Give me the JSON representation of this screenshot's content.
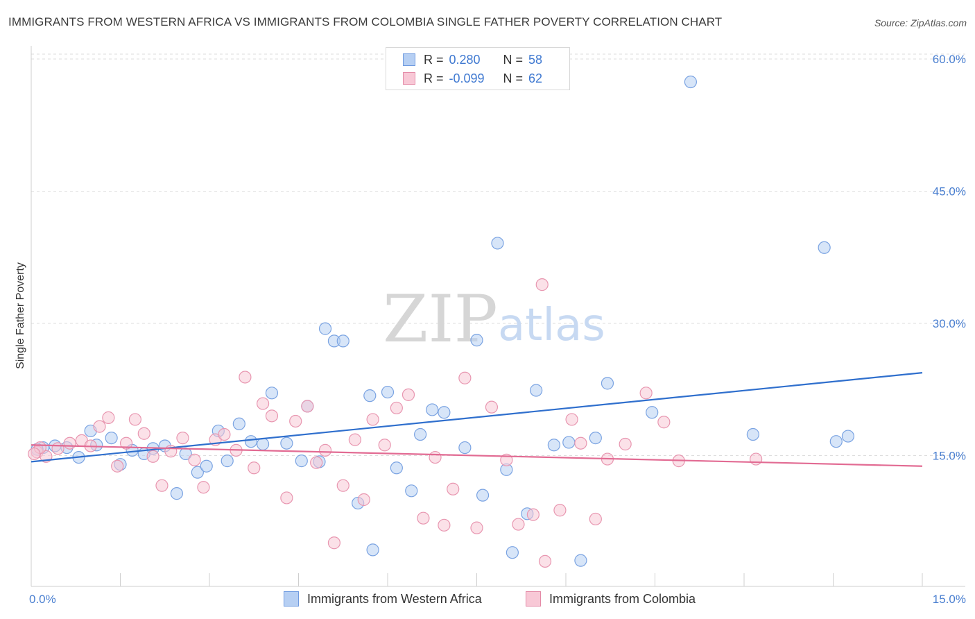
{
  "title": "IMMIGRANTS FROM WESTERN AFRICA VS IMMIGRANTS FROM COLOMBIA SINGLE FATHER POVERTY CORRELATION CHART",
  "source": "Source: ZipAtlas.com",
  "watermark": {
    "zip": "ZIP",
    "atlas": "atlas"
  },
  "legend": {
    "series1": {
      "r_label": "R =",
      "r_value": "0.280",
      "n_label": "N =",
      "n_value": "58"
    },
    "series2": {
      "r_label": "R =",
      "r_value": "-0.099",
      "n_label": "N =",
      "n_value": "62"
    }
  },
  "bottom_legend": {
    "series1": "Immigrants from Western Africa",
    "series2": "Immigrants from Colombia"
  },
  "colors": {
    "blue_fill": "#b6cff3",
    "blue_stroke": "#7aa3e2",
    "blue_line": "#2f6fcd",
    "pink_fill": "#f8c8d6",
    "pink_stroke": "#e896b0",
    "pink_line": "#e26b93",
    "tick": "#4a7fd0",
    "grid": "#dddddd"
  },
  "chart_data": {
    "type": "scatter",
    "title": "IMMIGRANTS FROM WESTERN AFRICA VS IMMIGRANTS FROM COLOMBIA SINGLE FATHER POVERTY CORRELATION CHART",
    "xlabel": "",
    "ylabel": "Single Father Poverty",
    "xlim": [
      0,
      15
    ],
    "ylim": [
      0,
      63
    ],
    "x_tick_labels": [
      "0.0%",
      "15.0%"
    ],
    "y_ticks": [
      15,
      30,
      45,
      60
    ],
    "y_tick_labels": [
      "15.0%",
      "30.0%",
      "45.0%",
      "60.0%"
    ],
    "series": [
      {
        "name": "Immigrants from Western Africa",
        "color": "blue",
        "r": 0.28,
        "n": 58,
        "trend": [
          [
            0,
            14.3
          ],
          [
            15,
            24.4
          ]
        ],
        "points": [
          [
            0.2,
            15.9
          ],
          [
            0.4,
            16.1
          ],
          [
            0.6,
            15.9
          ],
          [
            0.8,
            14.8
          ],
          [
            1.0,
            17.8
          ],
          [
            1.1,
            16.2
          ],
          [
            1.35,
            17.0
          ],
          [
            1.5,
            14.0
          ],
          [
            1.7,
            15.6
          ],
          [
            1.9,
            15.2
          ],
          [
            2.05,
            15.8
          ],
          [
            2.25,
            16.1
          ],
          [
            2.45,
            10.7
          ],
          [
            2.6,
            15.2
          ],
          [
            2.8,
            13.1
          ],
          [
            2.95,
            13.8
          ],
          [
            3.15,
            17.8
          ],
          [
            3.3,
            14.4
          ],
          [
            3.5,
            18.6
          ],
          [
            3.7,
            16.6
          ],
          [
            3.9,
            16.3
          ],
          [
            4.05,
            22.1
          ],
          [
            4.3,
            16.4
          ],
          [
            4.55,
            14.4
          ],
          [
            4.65,
            20.6
          ],
          [
            4.85,
            14.3
          ],
          [
            4.95,
            29.4
          ],
          [
            5.1,
            28.0
          ],
          [
            5.25,
            28.0
          ],
          [
            5.5,
            9.6
          ],
          [
            5.7,
            21.8
          ],
          [
            5.75,
            4.3
          ],
          [
            6.0,
            22.2
          ],
          [
            6.15,
            13.6
          ],
          [
            6.4,
            11.0
          ],
          [
            6.55,
            17.4
          ],
          [
            6.75,
            20.2
          ],
          [
            6.95,
            19.9
          ],
          [
            7.3,
            15.9
          ],
          [
            7.5,
            28.1
          ],
          [
            7.6,
            10.5
          ],
          [
            7.85,
            39.1
          ],
          [
            8.0,
            13.4
          ],
          [
            8.1,
            4.0
          ],
          [
            8.35,
            8.4
          ],
          [
            8.5,
            22.4
          ],
          [
            8.8,
            16.2
          ],
          [
            9.05,
            16.5
          ],
          [
            9.25,
            3.1
          ],
          [
            9.5,
            17.0
          ],
          [
            9.7,
            23.2
          ],
          [
            10.45,
            19.9
          ],
          [
            11.1,
            57.4
          ],
          [
            12.15,
            17.4
          ],
          [
            13.35,
            38.6
          ],
          [
            13.55,
            16.6
          ],
          [
            13.75,
            17.2
          ],
          [
            0.1,
            15.7
          ]
        ]
      },
      {
        "name": "Immigrants from Colombia",
        "color": "pink",
        "r": -0.099,
        "n": 62,
        "trend": [
          [
            0,
            16.2
          ],
          [
            15,
            13.8
          ]
        ],
        "points": [
          [
            0.1,
            15.4
          ],
          [
            0.25,
            14.9
          ],
          [
            0.45,
            15.8
          ],
          [
            0.65,
            16.4
          ],
          [
            0.85,
            16.7
          ],
          [
            1.0,
            16.1
          ],
          [
            1.15,
            18.3
          ],
          [
            1.3,
            19.3
          ],
          [
            1.45,
            13.8
          ],
          [
            1.6,
            16.4
          ],
          [
            1.75,
            19.1
          ],
          [
            1.9,
            17.5
          ],
          [
            2.05,
            14.9
          ],
          [
            2.2,
            11.6
          ],
          [
            2.35,
            15.5
          ],
          [
            2.55,
            17.0
          ],
          [
            2.75,
            14.5
          ],
          [
            2.9,
            11.4
          ],
          [
            3.1,
            16.8
          ],
          [
            3.25,
            17.4
          ],
          [
            3.45,
            15.6
          ],
          [
            3.6,
            23.9
          ],
          [
            3.75,
            13.6
          ],
          [
            3.9,
            20.9
          ],
          [
            4.05,
            19.5
          ],
          [
            4.3,
            10.2
          ],
          [
            4.45,
            18.9
          ],
          [
            4.65,
            20.6
          ],
          [
            4.8,
            14.2
          ],
          [
            4.95,
            15.6
          ],
          [
            5.1,
            5.1
          ],
          [
            5.25,
            11.6
          ],
          [
            5.45,
            16.8
          ],
          [
            5.6,
            10.0
          ],
          [
            5.75,
            19.1
          ],
          [
            5.95,
            16.2
          ],
          [
            6.15,
            20.4
          ],
          [
            6.35,
            21.9
          ],
          [
            6.6,
            7.9
          ],
          [
            6.8,
            14.8
          ],
          [
            6.95,
            7.1
          ],
          [
            7.1,
            11.2
          ],
          [
            7.3,
            23.8
          ],
          [
            7.5,
            6.8
          ],
          [
            7.75,
            20.5
          ],
          [
            8.0,
            14.5
          ],
          [
            8.2,
            7.2
          ],
          [
            8.45,
            8.3
          ],
          [
            8.6,
            34.4
          ],
          [
            8.65,
            3.0
          ],
          [
            8.9,
            8.8
          ],
          [
            9.1,
            19.1
          ],
          [
            9.25,
            16.4
          ],
          [
            9.5,
            7.8
          ],
          [
            9.7,
            14.6
          ],
          [
            10.0,
            16.3
          ],
          [
            10.35,
            22.1
          ],
          [
            10.65,
            18.8
          ],
          [
            10.9,
            14.4
          ],
          [
            12.2,
            14.6
          ],
          [
            0.15,
            15.9
          ],
          [
            0.05,
            15.2
          ]
        ]
      }
    ]
  }
}
